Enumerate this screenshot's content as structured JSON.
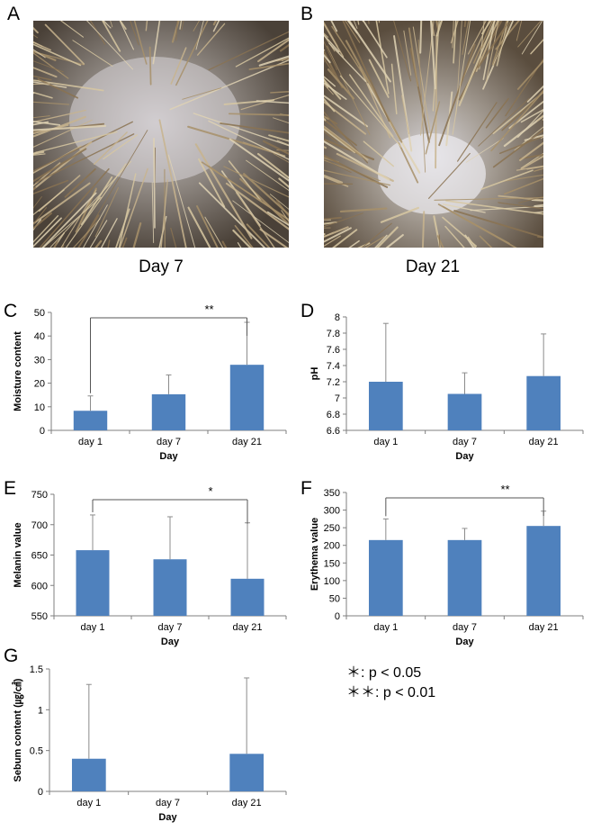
{
  "photos": [
    {
      "letter": "A",
      "caption": "Day 7"
    },
    {
      "letter": "B",
      "caption": "Day 21"
    }
  ],
  "legend": {
    "single_symbol": "＊",
    "single_text": ": p < 0.05",
    "double_symbol": "＊＊",
    "double_text": ": p < 0.01"
  },
  "colors": {
    "bar": "#4F81BD",
    "axis": "#7f7f7f",
    "error": "#8c8c8c",
    "bracket": "#555555"
  },
  "chart_data": [
    {
      "id": "C",
      "letter": "C",
      "type": "bar",
      "categories": [
        "day 1",
        "day 7",
        "day 21"
      ],
      "values": [
        8.3,
        15.3,
        27.8
      ],
      "errors": [
        6.3,
        8.2,
        18.0
      ],
      "xlabel": "Day",
      "ylabel": "Moisture content",
      "ylim": [
        0,
        50
      ],
      "yticks": [
        0,
        10,
        20,
        30,
        40,
        50
      ],
      "tick_labels": [
        "0",
        "10",
        "20",
        "30",
        "40",
        "50"
      ],
      "significance": {
        "from": 0,
        "to": 2,
        "label": "**"
      }
    },
    {
      "id": "D",
      "letter": "D",
      "type": "bar",
      "categories": [
        "day 1",
        "day 7",
        "day 21"
      ],
      "values": [
        7.2,
        7.05,
        7.27
      ],
      "errors": [
        0.72,
        0.26,
        0.52
      ],
      "xlabel": "Day",
      "ylabel": "pH",
      "ylim": [
        6.6,
        8.0
      ],
      "yticks": [
        6.6,
        6.8,
        7.0,
        7.2,
        7.4,
        7.6,
        7.8,
        8.0
      ],
      "tick_labels": [
        "6.6",
        "6.8",
        "7",
        "7.2",
        "7.4",
        "7.6",
        "7.8",
        "8"
      ]
    },
    {
      "id": "E",
      "letter": "E",
      "type": "bar",
      "categories": [
        "day 1",
        "day 7",
        "day 21"
      ],
      "values": [
        658,
        643,
        611
      ],
      "errors": [
        58,
        70,
        92
      ],
      "xlabel": "Day",
      "ylabel": "Melanin value",
      "ylim": [
        550,
        750
      ],
      "yticks": [
        550,
        600,
        650,
        700,
        750
      ],
      "tick_labels": [
        "550",
        "600",
        "650",
        "700",
        "750"
      ],
      "significance": {
        "from": 0,
        "to": 2,
        "label": "*"
      }
    },
    {
      "id": "F",
      "letter": "F",
      "type": "bar",
      "categories": [
        "day 1",
        "day 7",
        "day 21"
      ],
      "values": [
        215,
        215,
        255
      ],
      "errors": [
        60,
        33,
        42
      ],
      "xlabel": "Day",
      "ylabel": "Erythema value",
      "ylim": [
        0,
        350
      ],
      "yticks": [
        0,
        50,
        100,
        150,
        200,
        250,
        300,
        350
      ],
      "tick_labels": [
        "0",
        "50",
        "100",
        "150",
        "200",
        "250",
        "300",
        "350"
      ],
      "significance": {
        "from": 0,
        "to": 2,
        "label": "**"
      }
    },
    {
      "id": "G",
      "letter": "G",
      "type": "bar",
      "categories": [
        "day 1",
        "day 7",
        "day 21"
      ],
      "values": [
        0.4,
        0,
        0.46
      ],
      "errors": [
        0.91,
        0,
        0.93
      ],
      "xlabel": "Day",
      "ylabel": "Sebum content (㎍/㎠)",
      "ylim": [
        0,
        1.5
      ],
      "yticks": [
        0,
        0.5,
        1,
        1.5
      ],
      "tick_labels": [
        "0",
        "0.5",
        "1",
        "1.5"
      ]
    }
  ]
}
